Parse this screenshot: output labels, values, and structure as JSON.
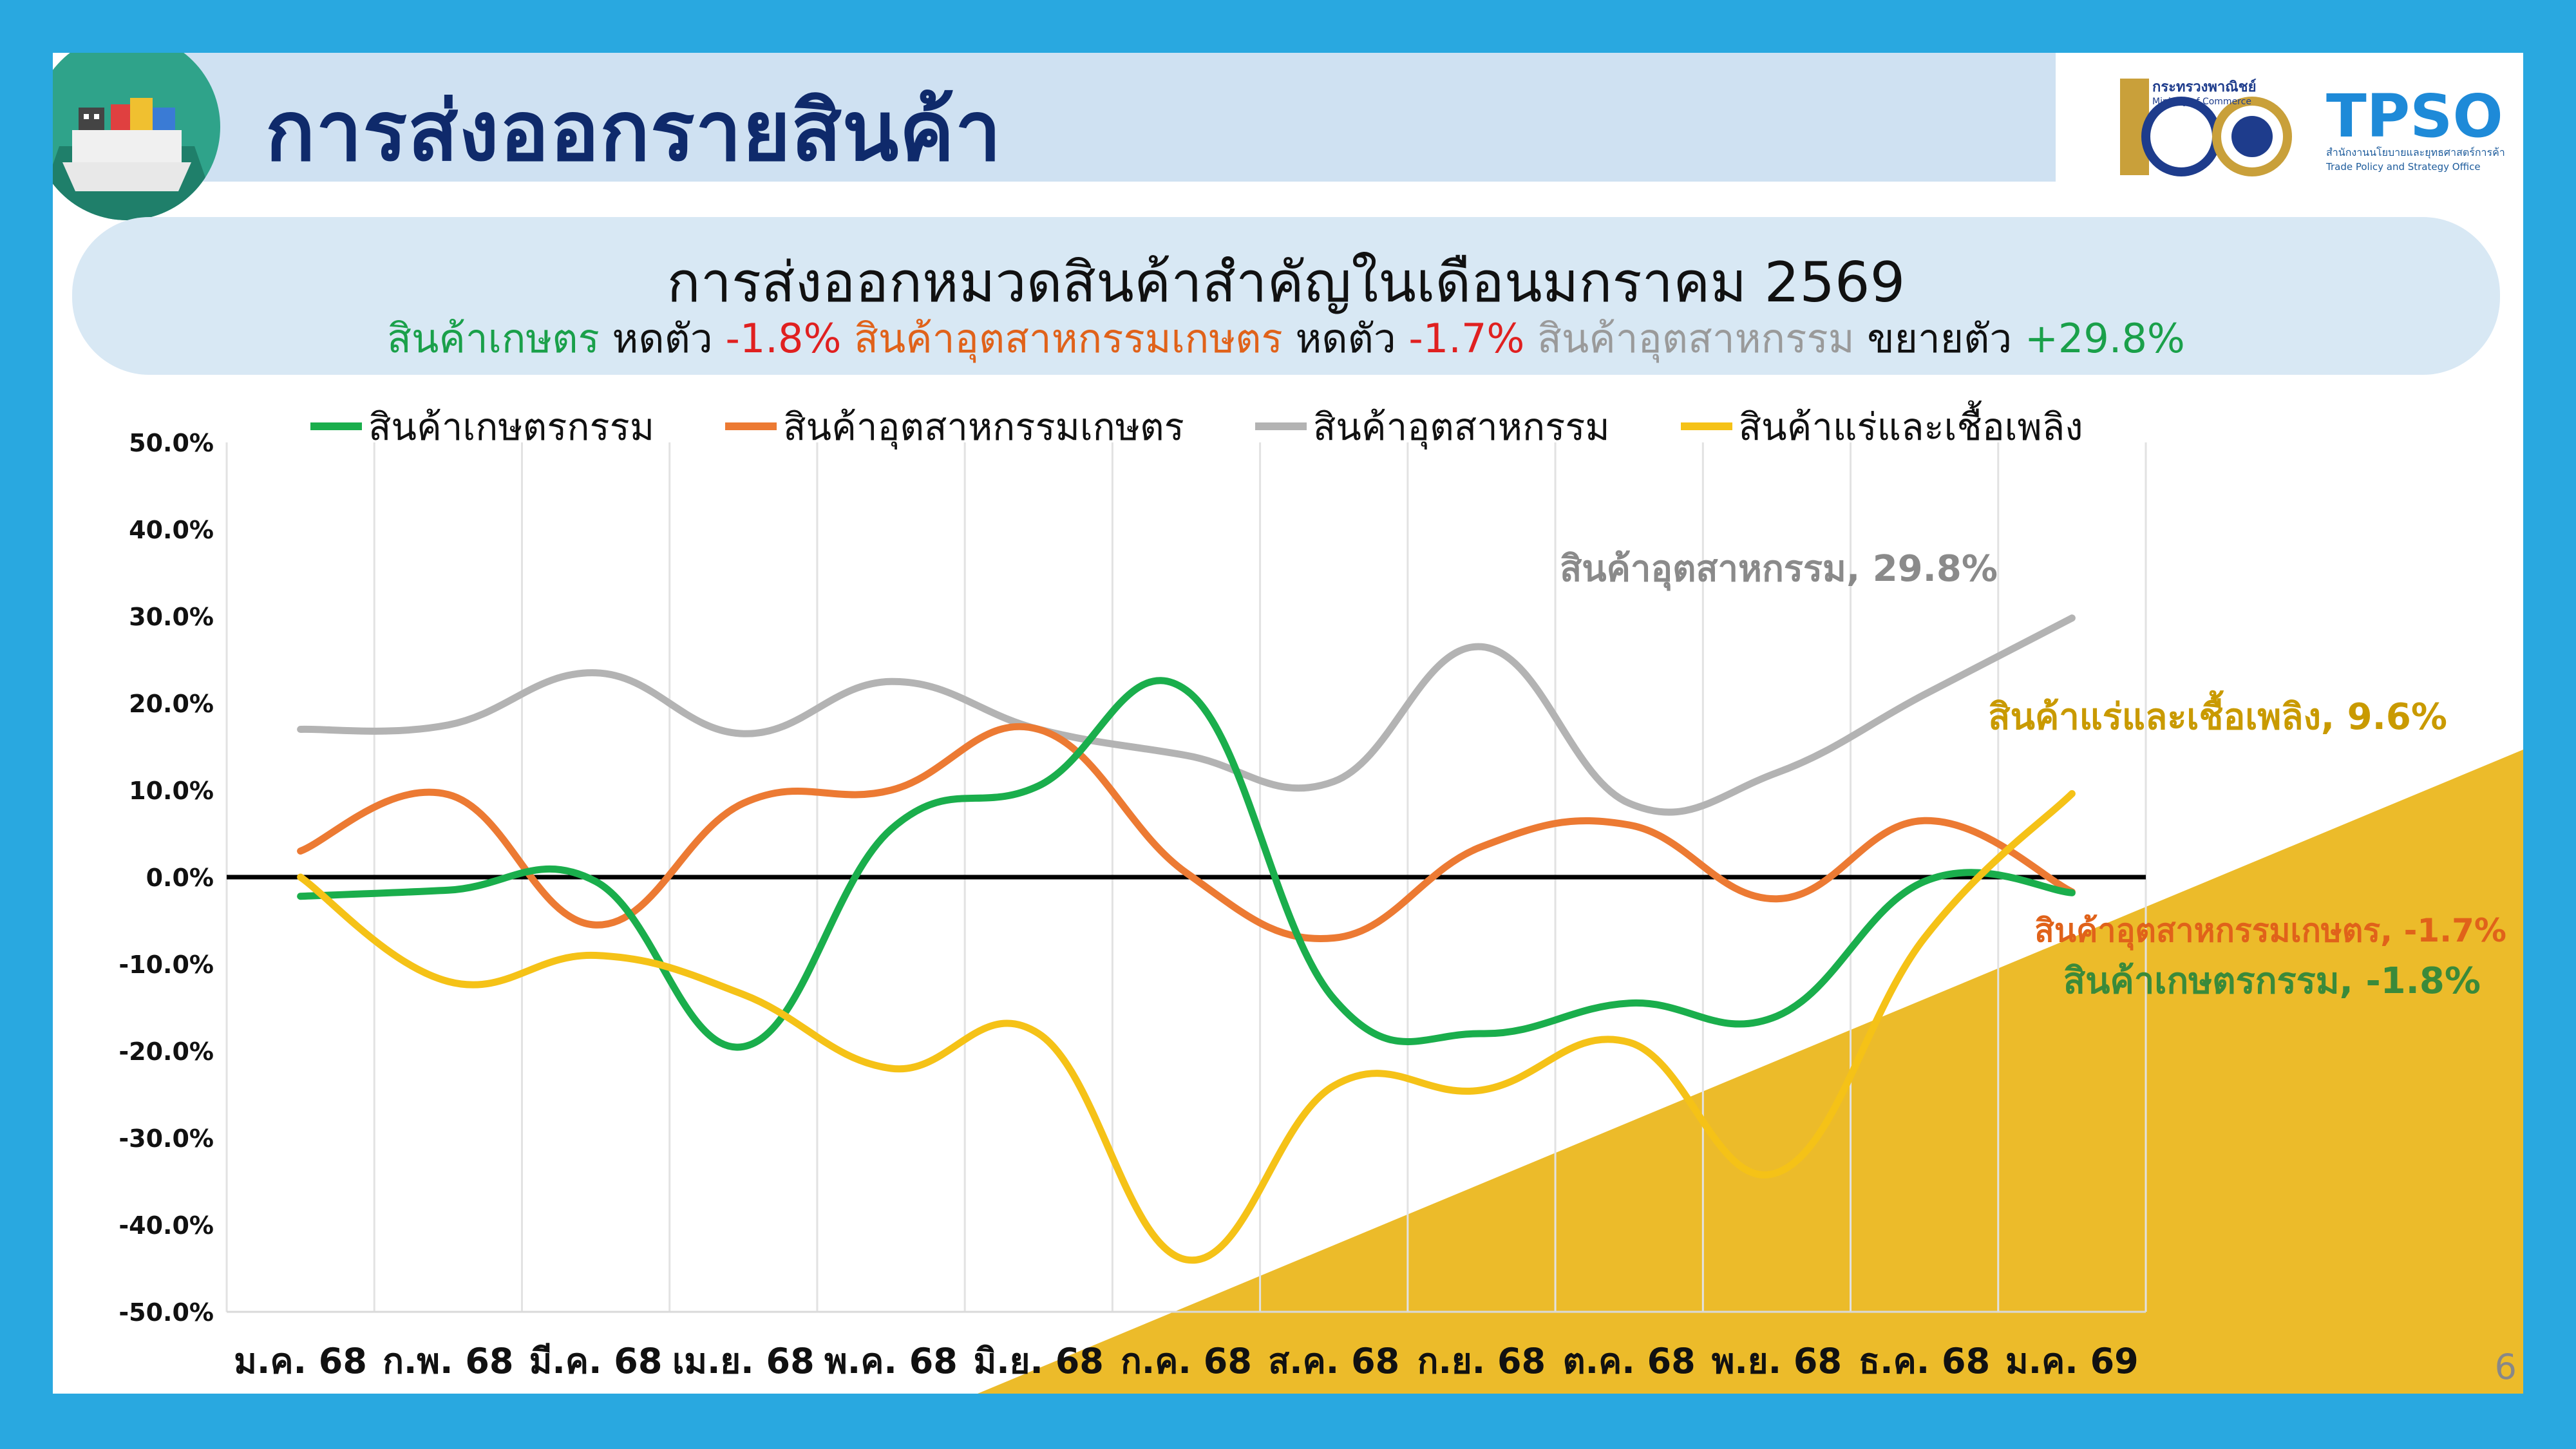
{
  "slide": {
    "title": "การส่งออกรายสินค้า",
    "page_number": "6"
  },
  "logos": {
    "moc_th": "กระทรวงพาณิชย์",
    "moc_en": "Ministry of Commerce",
    "tpso": "TPSO",
    "tpso_th": "สำนักงานนโยบายและยุทธศาสตร์การค้า",
    "tpso_en": "Trade Policy and Strategy Office"
  },
  "banner": {
    "title": "การส่งออกหมวดสินค้าสำคัญในเดือนมกราคม 2569",
    "seg1": "สินค้าเกษตร",
    "seg2": " หดตัว ",
    "seg3": "-1.8%",
    "seg4": " สินค้าอุตสาหกรรมเกษตร",
    "seg5": " หดตัว ",
    "seg6": "-1.7%",
    "seg7": " สินค้าอุตสาหกรรม",
    "seg8": " ขยายตัว ",
    "seg9": "+29.8%"
  },
  "colors": {
    "agri": "#1aae4c",
    "agro_ind": "#ec7a33",
    "industrial": "#b3b3b3",
    "fuel": "#f5c217",
    "zero_line": "#000000"
  },
  "chart_data": {
    "type": "line",
    "categories": [
      "ม.ค. 68",
      "ก.พ. 68",
      "มี.ค. 68",
      "เม.ย. 68",
      "พ.ค. 68",
      "มิ.ย. 68",
      "ก.ค. 68",
      "ส.ค. 68",
      "ก.ย. 68",
      "ต.ค. 68",
      "พ.ย. 68",
      "ธ.ค. 68",
      "ม.ค. 69"
    ],
    "ylim": [
      -50,
      50
    ],
    "yticks": [
      "50.0%",
      "40.0%",
      "30.0%",
      "20.0%",
      "10.0%",
      "0.0%",
      "-10.0%",
      "-20.0%",
      "-30.0%",
      "-40.0%",
      "-50.0%"
    ],
    "grid": "vertical",
    "legend_position": "top",
    "series": [
      {
        "name": "สินค้าเกษตรกรรม",
        "color": "#1aae4c",
        "values": [
          -2.2,
          -1.5,
          -0.5,
          -19.5,
          5.5,
          10.5,
          21.5,
          -14.0,
          -18.0,
          -14.5,
          -16.0,
          -0.5,
          -1.8
        ]
      },
      {
        "name": "สินค้าอุตสาหกรรมเกษตร",
        "color": "#ec7a33",
        "values": [
          3.0,
          9.5,
          -5.5,
          8.5,
          10.0,
          17.0,
          0.5,
          -7.0,
          3.5,
          6.0,
          -2.5,
          6.5,
          -1.7
        ]
      },
      {
        "name": "สินค้าอุตสาหกรรม",
        "color": "#b3b3b3",
        "values": [
          17.0,
          17.5,
          23.5,
          16.5,
          22.5,
          17.0,
          14.0,
          11.0,
          26.5,
          8.5,
          12.0,
          21.0,
          29.8
        ]
      },
      {
        "name": "สินค้าแร่และเชื้อเพลิง",
        "color": "#f5c217",
        "values": [
          0.0,
          -12.0,
          -9.0,
          -13.5,
          -22.0,
          -18.0,
          -44.0,
          -24.0,
          -24.5,
          -19.0,
          -34.0,
          -7.0,
          9.6
        ]
      }
    ],
    "annotations": [
      {
        "text": "สินค้าอุตสาหกรรม, 29.8%",
        "color": "#8a8a8a"
      },
      {
        "text": "สินค้าแร่และเชื้อเพลิง, 9.6%",
        "color": "#c99a00"
      },
      {
        "text": "สินค้าอุตสาหกรรมเกษตร, -1.7%",
        "color": "#e0621a"
      },
      {
        "text": "สินค้าเกษตรกรรม, -1.8%",
        "color": "#3a8a3a"
      }
    ]
  }
}
